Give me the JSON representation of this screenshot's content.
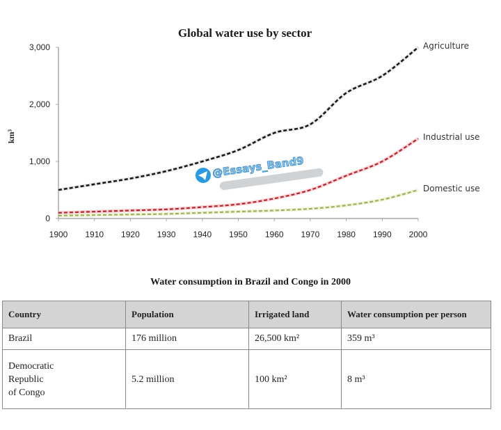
{
  "chart_data": {
    "type": "line",
    "title": "Global water use by sector",
    "xlabel": "",
    "ylabel": "km³",
    "x": [
      1900,
      1910,
      1920,
      1930,
      1940,
      1950,
      1960,
      1970,
      1980,
      1990,
      2000
    ],
    "xticks": [
      "1900",
      "1910",
      "1920",
      "1930",
      "1940",
      "1950",
      "1960",
      "1970",
      "1980",
      "1990",
      "2000"
    ],
    "yticks": [
      "0",
      "1,000",
      "2,000",
      "3,000"
    ],
    "ylim": [
      0,
      3000
    ],
    "xlim": [
      1900,
      2000
    ],
    "grid": false,
    "legend": "inline-right",
    "series": [
      {
        "name": "Agriculture",
        "color": "#1a1a1a",
        "values": [
          500,
          600,
          700,
          830,
          1000,
          1200,
          1500,
          1650,
          2200,
          2500,
          3000
        ]
      },
      {
        "name": "Industrial use",
        "color": "#b8232a",
        "values": [
          100,
          120,
          140,
          160,
          200,
          250,
          350,
          500,
          750,
          1000,
          1400
        ]
      },
      {
        "name": "Domestic use",
        "color": "#9fb05a",
        "values": [
          50,
          60,
          70,
          80,
          100,
          120,
          140,
          170,
          230,
          330,
          500
        ]
      }
    ]
  },
  "watermark": {
    "text": "@Essays_Band9",
    "icon": "telegram-icon"
  },
  "table": {
    "title": "Water consumption in Brazil and Congo in 2000",
    "headers": [
      "Country",
      "Population",
      "Irrigated land",
      "Water consumption per person"
    ],
    "rows": [
      [
        "Brazil",
        "176 million",
        "26,500 km²",
        "359 m³"
      ],
      [
        "Democratic Republic of Congo",
        "5.2 million",
        "100 km²",
        "8 m³"
      ]
    ]
  }
}
